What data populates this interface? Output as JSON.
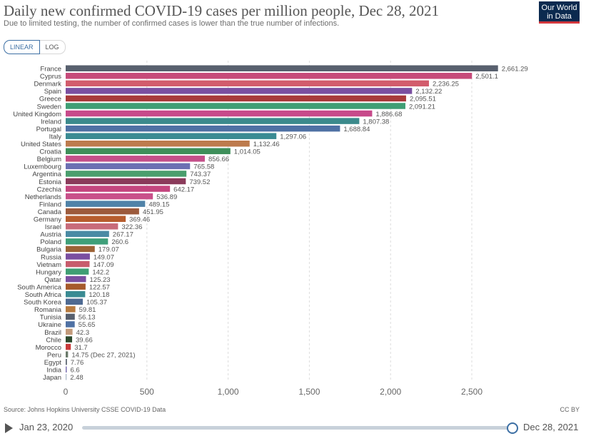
{
  "header": {
    "title": "Daily new confirmed COVID-19 cases per million people, Dec 28, 2021",
    "subtitle": "Due to limited testing, the number of confirmed cases is lower than the true number of infections.",
    "logo_line1": "Our World",
    "logo_line2": "in Data"
  },
  "scale_toggle": {
    "linear": "LINEAR",
    "log": "LOG",
    "selected": "LINEAR"
  },
  "chart_data": {
    "type": "bar",
    "orientation": "horizontal",
    "xlim": [
      0,
      2800
    ],
    "x_ticks": [
      0,
      500,
      1000,
      1500,
      2000,
      2500
    ],
    "x_tick_labels": [
      "0",
      "500",
      "1,000",
      "1,500",
      "2,000",
      "2,500"
    ],
    "grid": "vertical dashed",
    "categories": [
      "France",
      "Cyprus",
      "Denmark",
      "Spain",
      "Greece",
      "Sweden",
      "United Kingdom",
      "Ireland",
      "Portugal",
      "Italy",
      "United States",
      "Croatia",
      "Belgium",
      "Luxembourg",
      "Argentina",
      "Estonia",
      "Czechia",
      "Netherlands",
      "Finland",
      "Canada",
      "Germany",
      "Israel",
      "Austria",
      "Poland",
      "Bulgaria",
      "Russia",
      "Vietnam",
      "Hungary",
      "Qatar",
      "South America",
      "South Africa",
      "South Korea",
      "Romania",
      "Tunisia",
      "Ukraine",
      "Brazil",
      "Chile",
      "Morocco",
      "Peru",
      "Egypt",
      "India",
      "Japan"
    ],
    "values": [
      2661.29,
      2501.1,
      2236.25,
      2132.22,
      2095.51,
      2091.21,
      1886.68,
      1807.38,
      1688.84,
      1297.06,
      1132.46,
      1014.05,
      856.66,
      765.58,
      743.37,
      739.52,
      642.17,
      536.89,
      489.15,
      451.95,
      369.46,
      322.36,
      267.17,
      260.6,
      179.07,
      149.07,
      147.09,
      142.2,
      125.23,
      122.57,
      120.18,
      105.37,
      59.81,
      56.13,
      55.65,
      42.3,
      39.66,
      31.7,
      14.75,
      7.76,
      6.6,
      2.48
    ],
    "value_labels": [
      "2,661.29",
      "2,501.1",
      "2,236.25",
      "2,132.22",
      "2,095.51",
      "2,091.21",
      "1,886.68",
      "1,807.38",
      "1,688.84",
      "1,297.06",
      "1,132.46",
      "1,014.05",
      "856.66",
      "765.58",
      "743.37",
      "739.52",
      "642.17",
      "536.89",
      "489.15",
      "451.95",
      "369.46",
      "322.36",
      "267.17",
      "260.6",
      "179.07",
      "149.07",
      "147.09",
      "142.2",
      "125.23",
      "122.57",
      "120.18",
      "105.37",
      "59.81",
      "56.13",
      "55.65",
      "42.3",
      "39.66",
      "31.7",
      "14.75 (Dec 27, 2021)",
      "7.76",
      "6.6",
      "2.48"
    ],
    "colors": [
      "#58606e",
      "#c64a7a",
      "#d25c6c",
      "#7a4fa0",
      "#a83a3a",
      "#3f9e74",
      "#c74a8a",
      "#3b8a8c",
      "#4f71a4",
      "#3a8b93",
      "#bd7b4d",
      "#3e8f5a",
      "#c4508a",
      "#6c6fb3",
      "#4a9e6d",
      "#8a3a5a",
      "#c4457e",
      "#c9508a",
      "#4f82a8",
      "#9c5a3c",
      "#b75d2e",
      "#c86b7a",
      "#4a8ba4",
      "#3f9f79",
      "#9c6236",
      "#7a4fa0",
      "#c85c6c",
      "#3f9e74",
      "#7a4fa0",
      "#a65a2c",
      "#3a8b93",
      "#4e6a92",
      "#b77b40",
      "#58606e",
      "#4f71a4",
      "#c29a7a",
      "#2d4a2e",
      "#c83a3a",
      "#6a7a6a",
      "#5b6470",
      "#7a6fb0",
      "#a6b4c4"
    ]
  },
  "footer": {
    "source": "Source: Johns Hopkins University CSSE COVID-19 Data",
    "license": "CC BY"
  },
  "timeline": {
    "start": "Jan 23, 2020",
    "end": "Dec 28, 2021"
  }
}
